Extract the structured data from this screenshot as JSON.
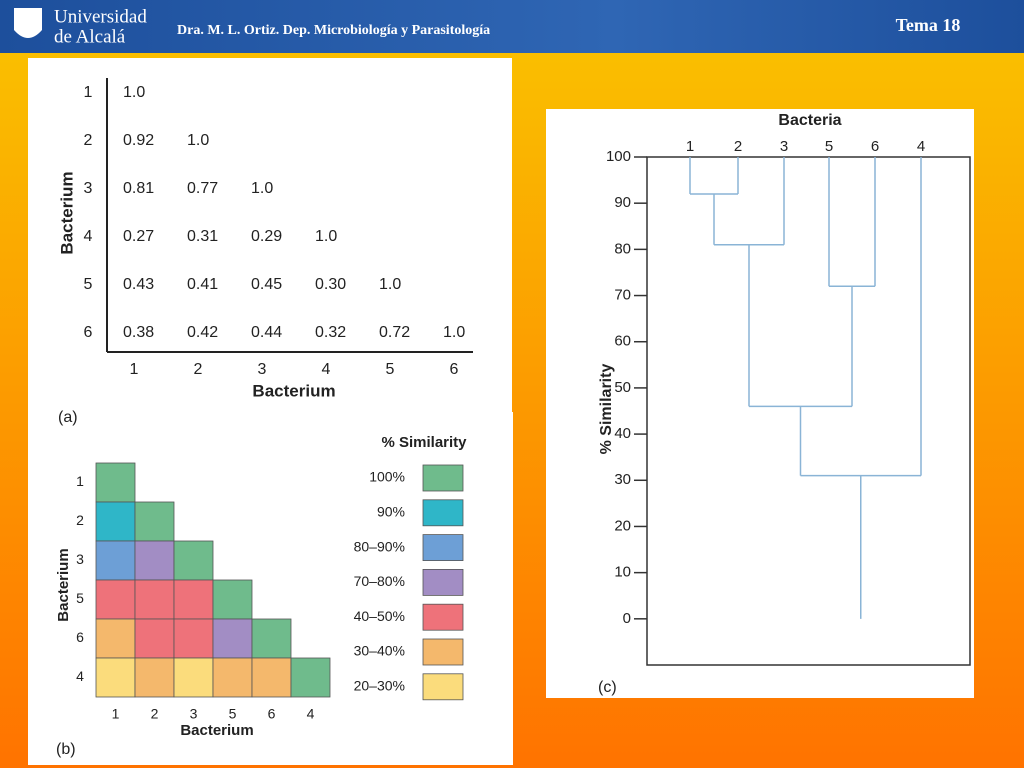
{
  "header": {
    "logo": [
      "Universidad",
      "de Alcalá"
    ],
    "author": "Dra. M. L. Ortiz. Dep. Microbiología y Parasitología",
    "topic": "Tema 18"
  },
  "panel_a": {
    "label": "(a)",
    "y_label": "Bacterium",
    "x_label": "Bacterium",
    "row_labels": [
      "1",
      "2",
      "3",
      "4",
      "5",
      "6"
    ],
    "col_labels": [
      "1",
      "2",
      "3",
      "4",
      "5",
      "6"
    ],
    "rows": [
      [
        "1.0"
      ],
      [
        "0.92",
        "1.0"
      ],
      [
        "0.81",
        "0.77",
        "1.0"
      ],
      [
        "0.27",
        "0.31",
        "0.29",
        "1.0"
      ],
      [
        "0.43",
        "0.41",
        "0.45",
        "0.30",
        "1.0"
      ],
      [
        "0.38",
        "0.42",
        "0.44",
        "0.32",
        "0.72",
        "1.0"
      ]
    ]
  },
  "panel_b": {
    "label": "(b)",
    "y_label": "Bacterium",
    "x_label": "Bacterium",
    "order": [
      "1",
      "2",
      "3",
      "5",
      "6",
      "4"
    ],
    "legend_title": "% Similarity",
    "legend": [
      {
        "label": "100%",
        "color": "#6fbb8c"
      },
      {
        "label": "90%",
        "color": "#2fb6c8"
      },
      {
        "label": "80–90%",
        "color": "#6d9fd6"
      },
      {
        "label": "70–80%",
        "color": "#a28dc4"
      },
      {
        "label": "40–50%",
        "color": "#ee727a"
      },
      {
        "label": "30–40%",
        "color": "#f4b86c"
      },
      {
        "label": "20–30%",
        "color": "#fbdc7c"
      }
    ],
    "cells": [
      [
        "#6fbb8c"
      ],
      [
        "#2fb6c8",
        "#6fbb8c"
      ],
      [
        "#6d9fd6",
        "#a28dc4",
        "#6fbb8c"
      ],
      [
        "#ee727a",
        "#ee727a",
        "#ee727a",
        "#6fbb8c"
      ],
      [
        "#f4b86c",
        "#ee727a",
        "#ee727a",
        "#a28dc4",
        "#6fbb8c"
      ],
      [
        "#fbdc7c",
        "#f4b86c",
        "#fbdc7c",
        "#f4b86c",
        "#f4b86c",
        "#6fbb8c"
      ]
    ]
  },
  "panel_c": {
    "label": "(c)",
    "title": "Bacteria",
    "y_label": "% Similarity",
    "color": "#8ab4d6",
    "leaves": [
      "1",
      "2",
      "3",
      "5",
      "6",
      "4"
    ],
    "ylim": [
      -10,
      100
    ],
    "yticks": [
      0,
      10,
      20,
      30,
      40,
      50,
      60,
      70,
      80,
      90,
      100
    ],
    "clusters": [
      {
        "members": [
          "1",
          "2"
        ],
        "similarity": 92
      },
      {
        "members": [
          "1",
          "2",
          "3"
        ],
        "similarity": 81
      },
      {
        "members": [
          "5",
          "6"
        ],
        "similarity": 72
      },
      {
        "members": [
          "1",
          "2",
          "3",
          "5",
          "6"
        ],
        "similarity": 46
      },
      {
        "members": [
          "1",
          "2",
          "3",
          "5",
          "6",
          "4"
        ],
        "similarity": 31
      }
    ]
  }
}
